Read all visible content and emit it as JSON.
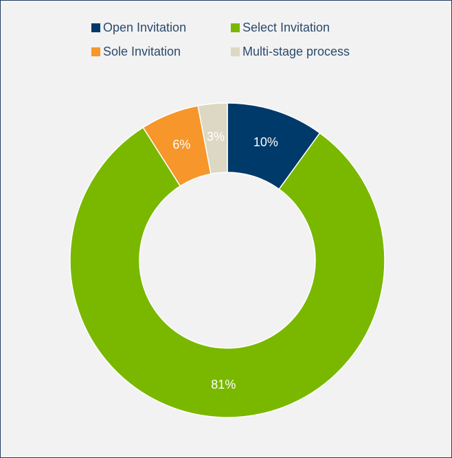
{
  "chart_data": {
    "type": "pie",
    "donut": true,
    "categories": [
      "Open Invitation",
      "Select Invitation",
      "Sole Invitation",
      "Multi-stage process"
    ],
    "values": [
      10,
      81,
      6,
      3
    ],
    "labels": [
      "10%",
      "81%",
      "6%",
      "3%"
    ],
    "colors": [
      "#003a6a",
      "#7ab800",
      "#f7962b",
      "#dcd8c4"
    ],
    "legend_position": "top",
    "title": "",
    "start_angle": "top",
    "direction": "clockwise"
  },
  "legend": [
    {
      "label": "Open Invitation",
      "color": "#003a6a"
    },
    {
      "label": "Select Invitation",
      "color": "#7ab800"
    },
    {
      "label": "Sole Invitation",
      "color": "#f7962b"
    },
    {
      "label": "Multi-stage process",
      "color": "#dcd8c4"
    }
  ]
}
